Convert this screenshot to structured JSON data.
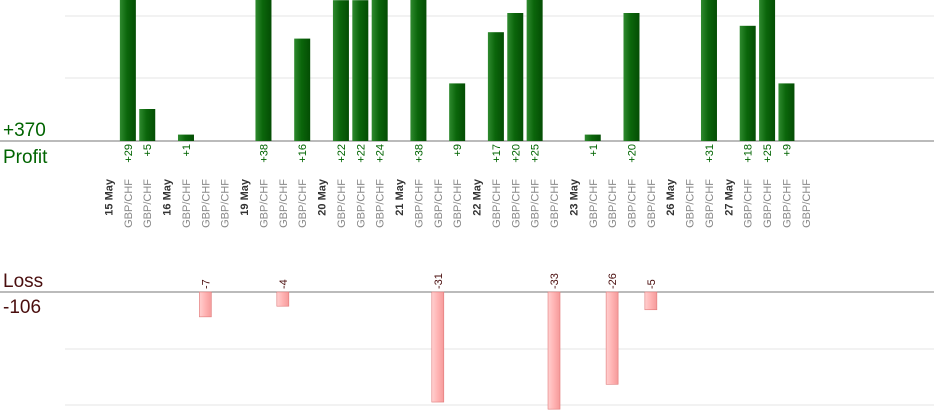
{
  "chart_data": {
    "type": "bar",
    "profit_label": "Profit",
    "profit_total": "+370",
    "loss_label": "Loss",
    "loss_total": "-106",
    "columns": [
      {
        "label": "15 May",
        "kind": "date"
      },
      {
        "label": "GBP/CHF",
        "kind": "pair",
        "value": 29,
        "text": "+29"
      },
      {
        "label": "GBP/CHF",
        "kind": "pair",
        "value": 5,
        "text": "+5"
      },
      {
        "label": "16 May",
        "kind": "date"
      },
      {
        "label": "GBP/CHF",
        "kind": "pair",
        "value": 1,
        "text": "+1"
      },
      {
        "label": "GBP/CHF",
        "kind": "pair",
        "value": -7,
        "text": "-7"
      },
      {
        "label": "GBP/CHF",
        "kind": "pair"
      },
      {
        "label": "19 May",
        "kind": "date"
      },
      {
        "label": "GBP/CHF",
        "kind": "pair",
        "value": 38,
        "text": "+38"
      },
      {
        "label": "GBP/CHF",
        "kind": "pair",
        "value": -4,
        "text": "-4"
      },
      {
        "label": "GBP/CHF",
        "kind": "pair",
        "value": 16,
        "text": "+16"
      },
      {
        "label": "20 May",
        "kind": "date"
      },
      {
        "label": "GBP/CHF",
        "kind": "pair",
        "value": 22,
        "text": "+22"
      },
      {
        "label": "GBP/CHF",
        "kind": "pair",
        "value": 22,
        "text": "+22"
      },
      {
        "label": "GBP/CHF",
        "kind": "pair",
        "value": 24,
        "text": "+24"
      },
      {
        "label": "21 May",
        "kind": "date"
      },
      {
        "label": "GBP/CHF",
        "kind": "pair",
        "value": 38,
        "text": "+38"
      },
      {
        "label": "GBP/CHF",
        "kind": "pair",
        "value": -31,
        "text": "-31"
      },
      {
        "label": "GBP/CHF",
        "kind": "pair",
        "value": 9,
        "text": "+9"
      },
      {
        "label": "22 May",
        "kind": "date"
      },
      {
        "label": "GBP/CHF",
        "kind": "pair",
        "value": 17,
        "text": "+17"
      },
      {
        "label": "GBP/CHF",
        "kind": "pair",
        "value": 20,
        "text": "+20"
      },
      {
        "label": "GBP/CHF",
        "kind": "pair",
        "value": 25,
        "text": "+25"
      },
      {
        "label": "GBP/CHF",
        "kind": "pair",
        "value": -33,
        "text": "-33"
      },
      {
        "label": "23 May",
        "kind": "date"
      },
      {
        "label": "GBP/CHF",
        "kind": "pair",
        "value": 1,
        "text": "+1"
      },
      {
        "label": "GBP/CHF",
        "kind": "pair",
        "value": -26,
        "text": "-26"
      },
      {
        "label": "GBP/CHF",
        "kind": "pair",
        "value": 20,
        "text": "+20"
      },
      {
        "label": "GBP/CHF",
        "kind": "pair",
        "value": -5,
        "text": "-5"
      },
      {
        "label": "26 May",
        "kind": "date"
      },
      {
        "label": "GBP/CHF",
        "kind": "pair"
      },
      {
        "label": "GBP/CHF",
        "kind": "pair",
        "value": 31,
        "text": "+31"
      },
      {
        "label": "27 May",
        "kind": "date"
      },
      {
        "label": "GBP/CHF",
        "kind": "pair",
        "value": 18,
        "text": "+18"
      },
      {
        "label": "GBP/CHF",
        "kind": "pair",
        "value": 25,
        "text": "+25"
      },
      {
        "label": "GBP/CHF",
        "kind": "pair",
        "value": 9,
        "text": "+9"
      },
      {
        "label": "GBP/CHF",
        "kind": "pair"
      }
    ],
    "colors": {
      "profit_bar": "#0b660b",
      "profit_bar_light": "#2f8a2f",
      "loss_bar": "#ffb3b3",
      "loss_bar_edge": "#e07a7a",
      "profit_text": "#006400",
      "loss_text": "#4a0e0e",
      "date_text": "#333333",
      "pair_text": "#888888"
    }
  }
}
